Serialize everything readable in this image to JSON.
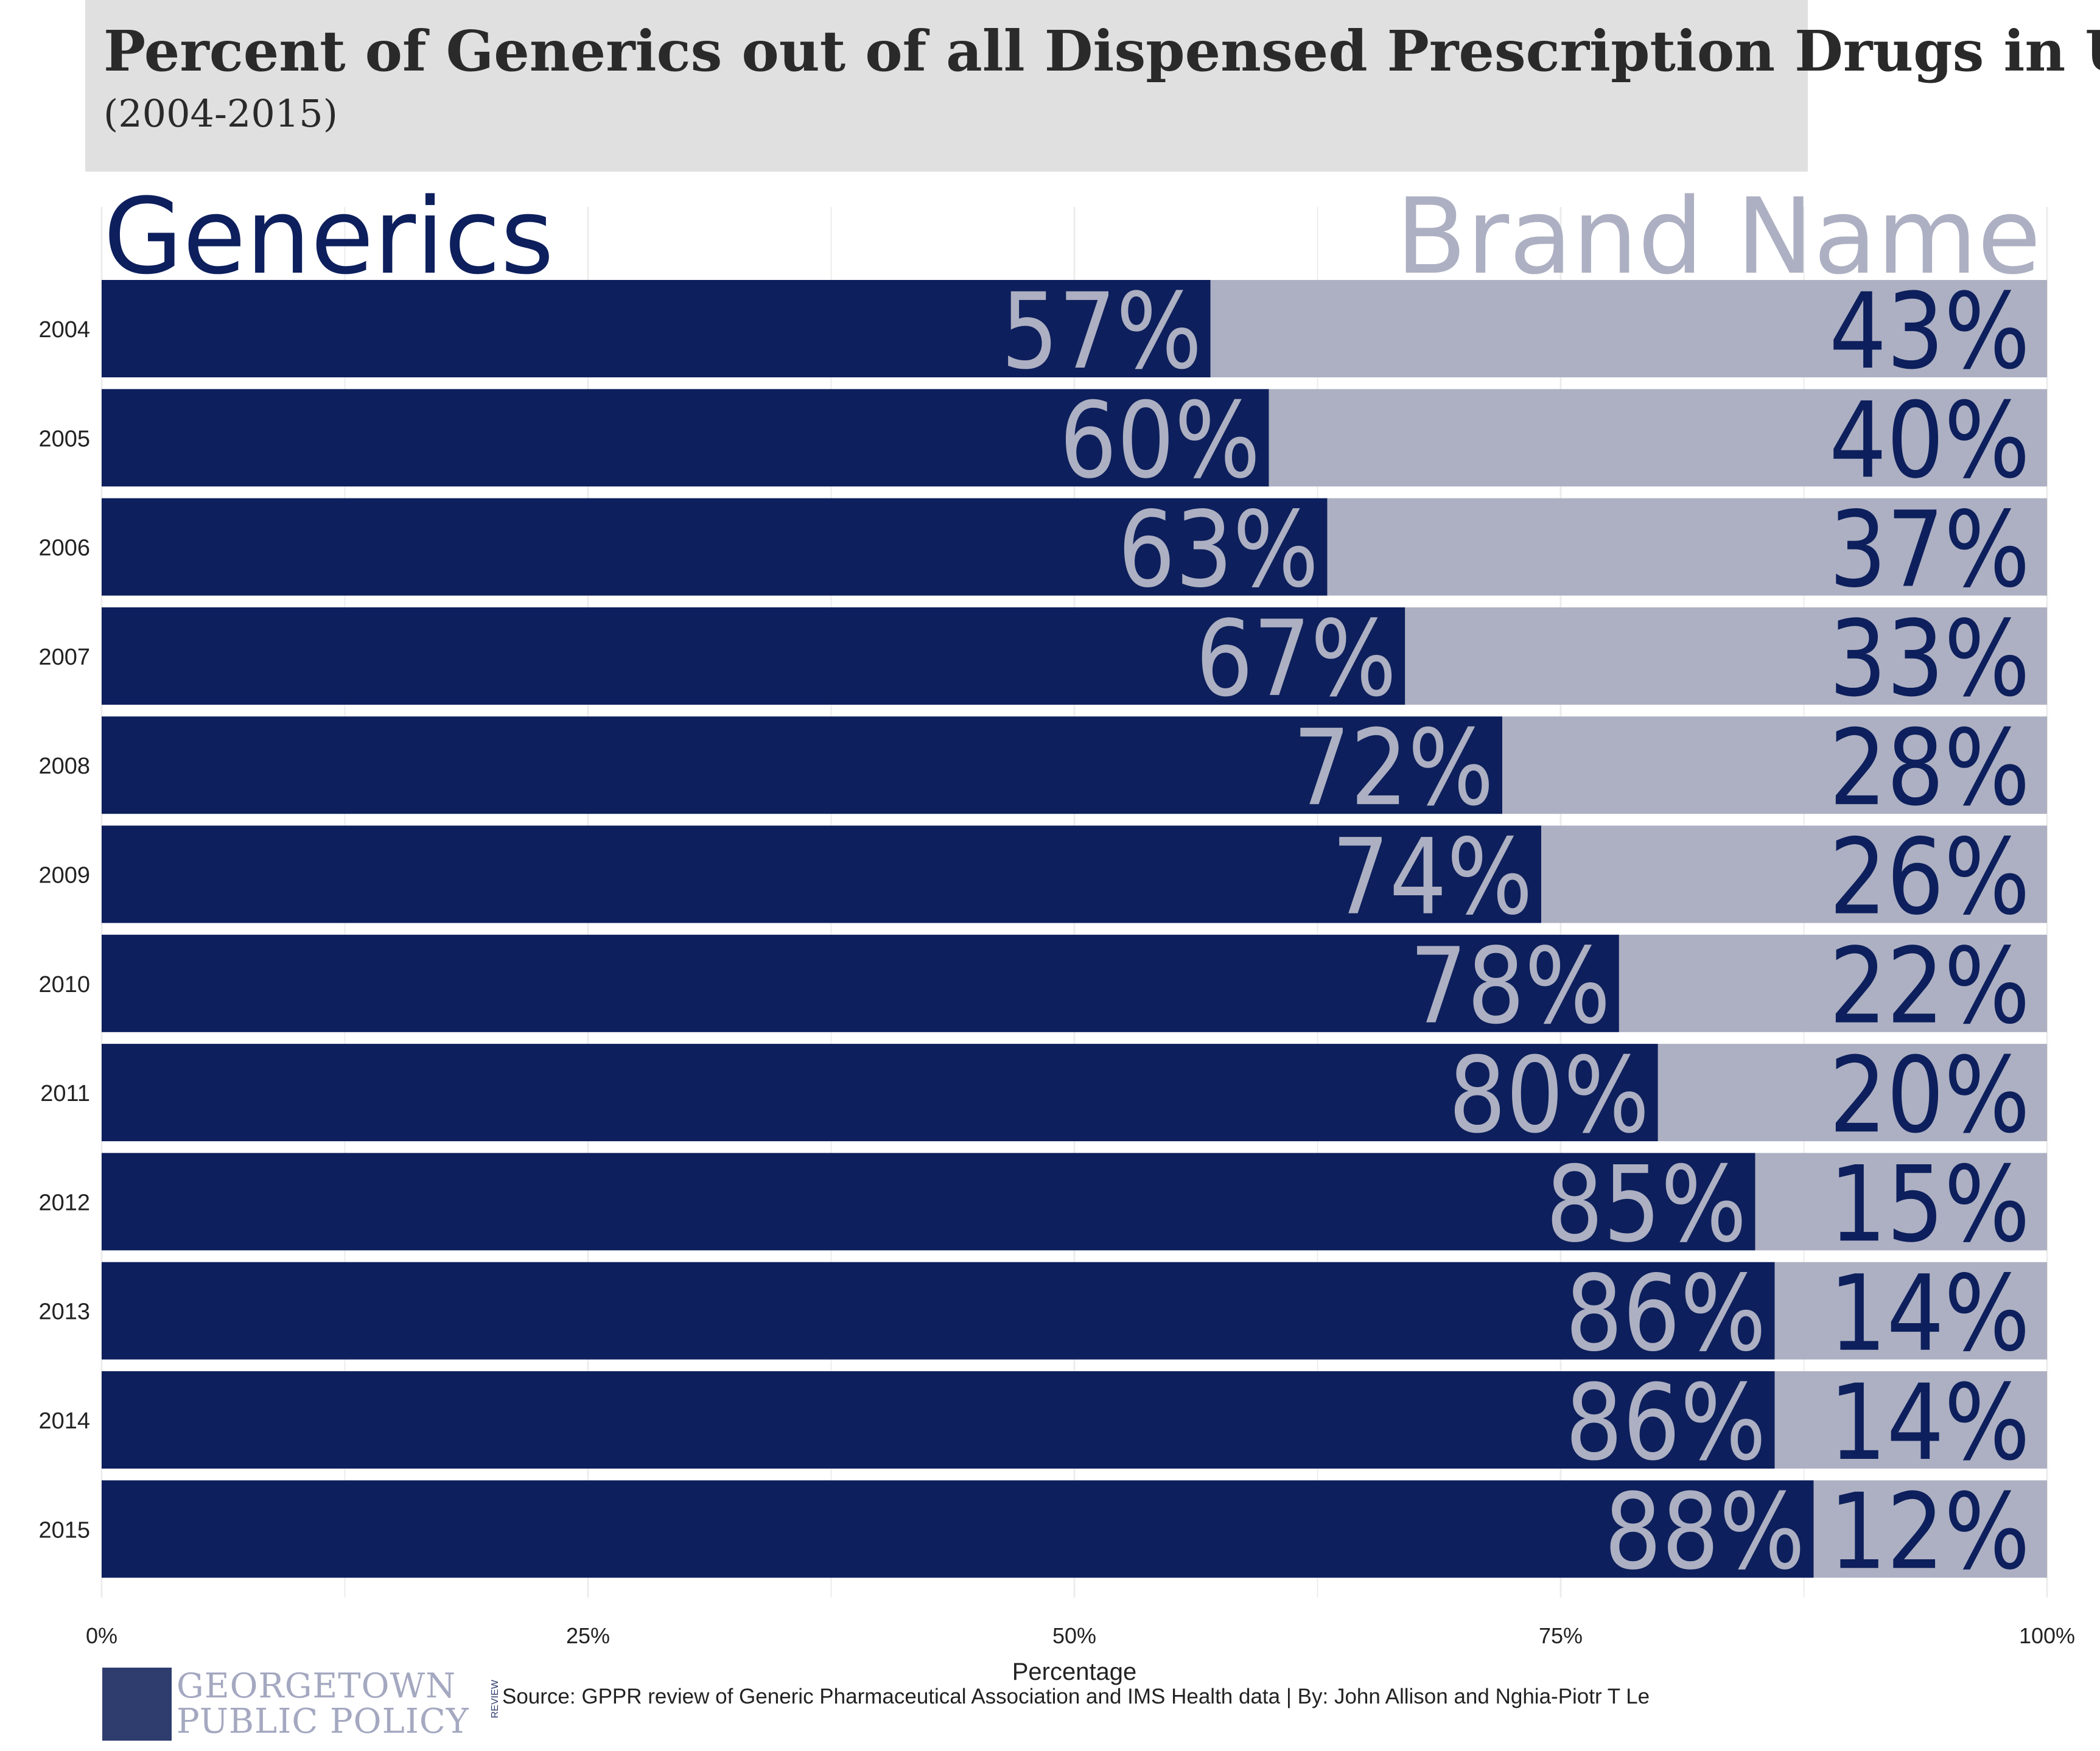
{
  "title": "Percent of Generics out of all Dispensed Prescription Drugs in US",
  "subtitle": "(2004-2015)",
  "colors": {
    "generics": "#0d1f5c",
    "brand": "#adb0c2",
    "title_bg": "#e0e0e0"
  },
  "chart_data": {
    "type": "bar",
    "orientation": "horizontal",
    "stacked": true,
    "categories": [
      "2004",
      "2005",
      "2006",
      "2007",
      "2008",
      "2009",
      "2010",
      "2011",
      "2012",
      "2013",
      "2014",
      "2015"
    ],
    "series": [
      {
        "name": "Generics",
        "values": [
          57,
          60,
          63,
          67,
          72,
          74,
          78,
          80,
          85,
          86,
          86,
          88
        ]
      },
      {
        "name": "Brand Name",
        "values": [
          43,
          40,
          37,
          33,
          28,
          26,
          22,
          20,
          15,
          14,
          14,
          12
        ]
      }
    ],
    "generics_labels": [
      "57%",
      "60%",
      "63%",
      "67%",
      "72%",
      "74%",
      "78%",
      "80%",
      "85%",
      "86%",
      "86%",
      "88%"
    ],
    "brand_labels": [
      "43%",
      "40%",
      "37%",
      "33%",
      "28%",
      "26%",
      "22%",
      "20%",
      "15%",
      "14%",
      "14%",
      "12%"
    ],
    "xlabel": "Percentage",
    "ylabel": "",
    "xlim": [
      0,
      100
    ],
    "xticks": [
      0,
      25,
      50,
      75,
      100
    ],
    "xtick_labels": [
      "0%",
      "25%",
      "50%",
      "75%",
      "100%"
    ],
    "grid": true,
    "legend_headers": {
      "left": "Generics",
      "right": "Brand Name"
    }
  },
  "footer": {
    "source": "Source: GPPR review of Generic Pharmaceutical Association and IMS Health data | By: John Allison and Nghia-Piotr T Le",
    "logo_line1": "GEORGETOWN",
    "logo_line2": "PUBLIC POLICY",
    "logo_side": "REVIEW"
  }
}
